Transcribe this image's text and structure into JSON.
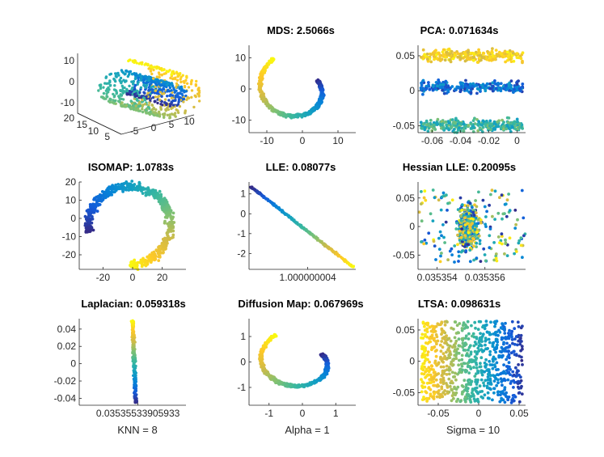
{
  "figure": {
    "background": "#ffffff",
    "colormap": "parula"
  },
  "chart_data": [
    {
      "id": "original",
      "type": "scatter3d",
      "title": "",
      "zlim": [
        -10,
        15
      ],
      "zticks": [
        "10",
        "0",
        "-10"
      ],
      "yticks": [
        "20",
        "15",
        "10",
        "5"
      ],
      "xticks": [
        "-5",
        "0",
        "5",
        "10"
      ],
      "points": 800,
      "shape": "swiss-roll"
    },
    {
      "id": "mds",
      "type": "scatter",
      "title": "MDS: 2.5066s",
      "xlim": [
        -15,
        15
      ],
      "ylim": [
        -14,
        14
      ],
      "xticks": [
        -10,
        0,
        10
      ],
      "yticks": [
        10,
        0,
        -10
      ],
      "shape": "spiral",
      "center": [
        -1,
        0
      ],
      "points": 600
    },
    {
      "id": "pca",
      "type": "scatter",
      "title": "PCA: 0.071634s",
      "xlim": [
        -0.07,
        0.006
      ],
      "ylim": [
        -0.06,
        0.065
      ],
      "xticks": [
        -0.06,
        -0.04,
        -0.02,
        0
      ],
      "yticks": [
        0.05,
        0,
        -0.05
      ],
      "shape": "bands",
      "points": 800
    },
    {
      "id": "isomap",
      "type": "scatter",
      "title": "ISOMAP: 1.0783s",
      "xlim": [
        -36,
        36
      ],
      "ylim": [
        -28,
        20
      ],
      "xticks": [
        -20,
        0,
        20
      ],
      "yticks": [
        20,
        10,
        0,
        -10,
        -20
      ],
      "shape": "ring-arc",
      "points": 600
    },
    {
      "id": "lle",
      "type": "scatter",
      "title": "LLE: 0.08077s",
      "xlim": [
        0,
        1
      ],
      "ylim": [
        -2.8,
        1.6
      ],
      "xticks": [
        "1.000000004"
      ],
      "yticks": [
        1,
        0,
        -1,
        -2
      ],
      "shape": "diagonal-line",
      "points": 500
    },
    {
      "id": "hessian_lle",
      "type": "scatter",
      "title": "Hessian LLE: 0.20095s",
      "xlim": [
        0.0353532,
        0.0353577
      ],
      "ylim": [
        -0.075,
        0.078
      ],
      "xticks": [
        "0.035354",
        "0.035356"
      ],
      "yticks": [
        0.05,
        0,
        -0.05
      ],
      "shape": "dense-cluster",
      "points": 700
    },
    {
      "id": "laplacian",
      "type": "scatter",
      "title": "Laplacian: 0.059318s",
      "xlim": [
        0,
        1
      ],
      "ylim": [
        -0.048,
        0.052
      ],
      "xticks": [
        "0.03535533905933"
      ],
      "yticks": [
        0.04,
        0.02,
        0,
        -0.02,
        -0.04
      ],
      "xlabel": "KNN = 8",
      "shape": "vertical-line",
      "points": 400
    },
    {
      "id": "diffusion_map",
      "type": "scatter",
      "title": "Diffusion Map: 0.067969s",
      "xlim": [
        -1.6,
        1.6
      ],
      "ylim": [
        -1.7,
        1.7
      ],
      "xticks": [
        -1,
        0,
        1
      ],
      "yticks": [
        1,
        0,
        -1
      ],
      "xlabel": "Alpha = 1",
      "shape": "spiral",
      "center": [
        0,
        0
      ],
      "points": 600
    },
    {
      "id": "ltsa",
      "type": "scatter",
      "title": "LTSA: 0.098631s",
      "xlim": [
        -0.075,
        0.058
      ],
      "ylim": [
        -0.07,
        0.068
      ],
      "xticks": [
        -0.05,
        0,
        0.05
      ],
      "yticks": [
        0.05,
        0,
        -0.05
      ],
      "xlabel": "Sigma = 10",
      "shape": "gradient-box",
      "points": 800
    }
  ]
}
